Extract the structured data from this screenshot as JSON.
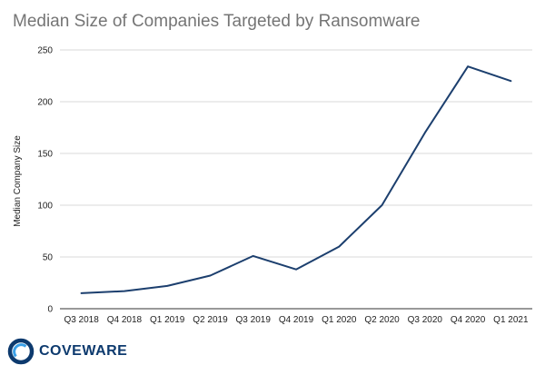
{
  "colors": {
    "line": "#1c3f6e",
    "logo_dark": "#0d3a6e",
    "logo_light": "#3aa0e8"
  },
  "brand": {
    "logo_text": "COVEWARE",
    "logo_icon": "coveware-logo-icon"
  },
  "chart_data": {
    "type": "line",
    "title": "Median Size of Companies Targeted by Ransomware",
    "xlabel": "",
    "ylabel": "Median Company Size",
    "categories": [
      "Q3 2018",
      "Q4 2018",
      "Q1 2019",
      "Q2 2019",
      "Q3 2019",
      "Q4 2019",
      "Q1 2020",
      "Q2 2020",
      "Q3 2020",
      "Q4 2020",
      "Q1 2021"
    ],
    "series": [
      {
        "values": [
          15,
          17,
          22,
          32,
          51,
          38,
          60,
          100,
          170,
          234,
          220
        ]
      }
    ],
    "ylim": [
      0,
      250
    ],
    "yticks": [
      0,
      50,
      100,
      150,
      200,
      250
    ],
    "grid": true,
    "legend": "none"
  }
}
